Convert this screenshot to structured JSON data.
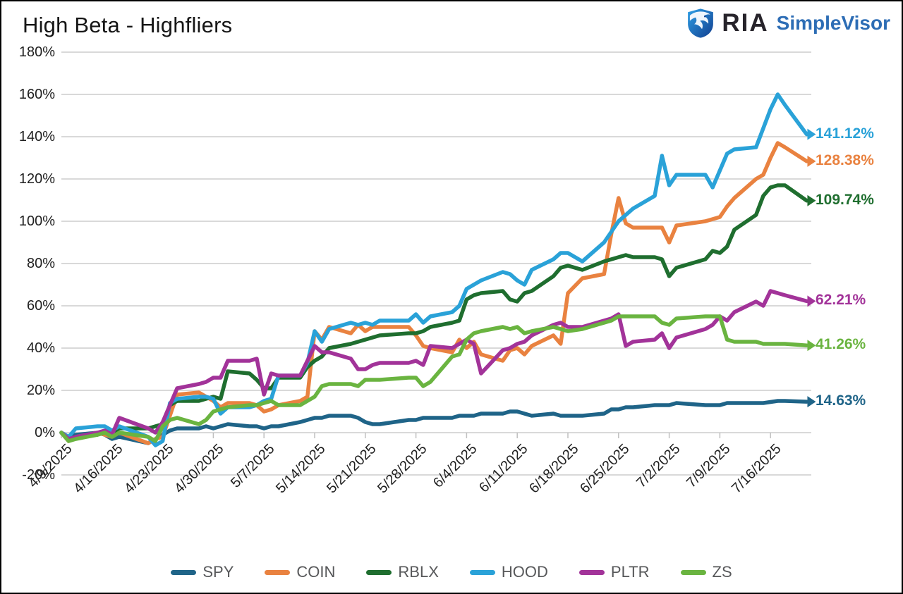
{
  "title": "High Beta - Highfliers",
  "logo": {
    "brand": "RIA",
    "product": "SimpleVisor",
    "brand_color": "#27242b",
    "product_color": "#2d6db5",
    "shield_dark": "#123f8f",
    "shield_light": "#2e9fe6"
  },
  "chart_data": {
    "type": "line",
    "title": "High Beta - Highfliers",
    "xlabel": "",
    "ylabel": "",
    "y_axis": {
      "min": -20,
      "max": 180,
      "step": 20,
      "suffix": "%"
    },
    "grid": true,
    "grid_color": "#d9d9d9",
    "tick_color": "#c0c0c0",
    "legend_position": "bottom",
    "x_unit": "days since 4/9/2025",
    "x_ticks": [
      {
        "label": "4/9/2025",
        "day": 0
      },
      {
        "label": "4/16/2025",
        "day": 7
      },
      {
        "label": "4/23/2025",
        "day": 14
      },
      {
        "label": "4/30/2025",
        "day": 21
      },
      {
        "label": "5/7/2025",
        "day": 28
      },
      {
        "label": "5/14/2025",
        "day": 35
      },
      {
        "label": "5/21/2025",
        "day": 42
      },
      {
        "label": "5/28/2025",
        "day": 49
      },
      {
        "label": "6/4/2025",
        "day": 56
      },
      {
        "label": "6/11/2025",
        "day": 63
      },
      {
        "label": "6/18/2025",
        "day": 70
      },
      {
        "label": "6/25/2025",
        "day": 77
      },
      {
        "label": "7/2/2025",
        "day": 84
      },
      {
        "label": "7/9/2025",
        "day": 91
      },
      {
        "label": "7/16/2025",
        "day": 98
      }
    ],
    "days": [
      0,
      1,
      2,
      5,
      6,
      7,
      8,
      12,
      13,
      14,
      15,
      16,
      19,
      20,
      21,
      22,
      23,
      26,
      27,
      28,
      29,
      30,
      33,
      34,
      35,
      36,
      37,
      40,
      41,
      42,
      43,
      44,
      48,
      49,
      50,
      51,
      54,
      55,
      56,
      57,
      58,
      61,
      62,
      63,
      64,
      65,
      68,
      69,
      70,
      72,
      75,
      76,
      77,
      78,
      79,
      82,
      83,
      84,
      85,
      89,
      90,
      91,
      92,
      93,
      96,
      97,
      98,
      99,
      100,
      103
    ],
    "series": [
      {
        "name": "SPY",
        "color": "#1f6488",
        "end_label": "14.63%",
        "values": [
          0,
          -2,
          -1,
          0,
          -1,
          -3,
          -2,
          -5,
          -3,
          -1,
          1,
          2,
          2,
          3,
          2,
          3,
          4,
          3,
          3,
          2,
          3,
          3,
          5,
          6,
          7,
          7,
          8,
          8,
          7,
          5,
          4,
          4,
          6,
          6,
          7,
          7,
          7,
          8,
          8,
          8,
          9,
          9,
          10,
          10,
          9,
          8,
          9,
          8,
          8,
          8,
          9,
          11,
          11,
          12,
          12,
          13,
          13,
          13,
          14,
          13,
          13,
          13,
          14,
          14,
          14,
          14,
          14.5,
          15,
          15,
          14.63
        ]
      },
      {
        "name": "COIN",
        "color": "#e98240",
        "end_label": "128.38%",
        "values": [
          0,
          -4,
          -2,
          0,
          -1,
          -2,
          0,
          -5,
          -3,
          -2,
          8,
          18,
          19,
          17,
          15,
          12,
          14,
          14,
          13,
          10,
          11,
          13,
          15,
          17,
          48,
          44,
          50,
          47,
          51,
          48,
          50,
          50,
          50,
          46,
          41,
          40,
          38,
          44,
          40,
          43,
          37,
          34,
          39,
          40,
          37,
          41,
          46,
          42,
          66,
          73,
          75,
          94,
          111,
          99,
          97,
          97,
          97,
          90,
          98,
          100,
          101,
          102,
          107,
          111,
          120,
          122,
          130,
          137,
          135,
          128.38
        ]
      },
      {
        "name": "RBLX",
        "color": "#1f6e2f",
        "end_label": "109.74%",
        "values": [
          0,
          -3,
          -2,
          -1,
          0,
          0,
          2,
          2,
          3,
          4,
          13,
          15,
          15,
          16,
          17,
          16,
          29,
          28,
          25,
          21,
          21,
          26,
          26,
          31,
          34,
          36,
          40,
          42,
          43,
          44,
          45,
          46,
          47,
          47,
          48,
          50,
          52,
          53,
          63,
          65,
          66,
          67,
          63,
          62,
          66,
          67,
          74,
          78,
          79,
          77,
          81,
          82,
          83,
          84,
          83,
          83,
          82,
          74,
          78,
          82,
          86,
          85,
          88,
          96,
          103,
          112,
          116,
          117,
          117,
          109.74
        ]
      },
      {
        "name": "HOOD",
        "color": "#2aa2d8",
        "end_label": "141.12%",
        "values": [
          0,
          -2,
          2,
          3,
          3,
          1,
          3,
          -2,
          -6,
          -4,
          14,
          16,
          17,
          17,
          16,
          9,
          12,
          12,
          13,
          15,
          16,
          27,
          27,
          33,
          48,
          43,
          49,
          52,
          51,
          52,
          51,
          53,
          53,
          56,
          52,
          55,
          57,
          60,
          68,
          70,
          72,
          76,
          75,
          72,
          70,
          77,
          82,
          85,
          85,
          81,
          90,
          95,
          100,
          103,
          106,
          112,
          131,
          117,
          122,
          122,
          116,
          124,
          132,
          134,
          135,
          144,
          153,
          160,
          155,
          141.12
        ]
      },
      {
        "name": "PLTR",
        "color": "#a23399",
        "end_label": "62.21%",
        "values": [
          0,
          -3,
          -2,
          0,
          1,
          -1,
          7,
          2,
          0,
          5,
          13,
          21,
          23,
          24,
          26,
          26,
          34,
          34,
          35,
          18,
          28,
          27,
          27,
          34,
          41,
          38,
          38,
          35,
          30,
          30,
          32,
          33,
          33,
          34,
          32,
          41,
          40,
          42,
          44,
          42,
          28,
          39,
          40,
          42,
          43,
          46,
          51,
          52,
          50,
          50,
          53,
          54,
          56,
          41,
          43,
          44,
          47,
          40,
          45,
          49,
          51,
          55,
          53,
          57,
          62,
          60,
          67,
          66,
          65,
          62.21
        ]
      },
      {
        "name": "ZS",
        "color": "#6ab440",
        "end_label": "41.26%",
        "values": [
          0,
          -4,
          -3,
          -1,
          0,
          -2,
          0,
          -2,
          -4,
          3,
          6,
          7,
          4,
          6,
          10,
          11,
          12,
          13,
          13,
          14,
          15,
          13,
          13,
          15,
          17,
          22,
          23,
          23,
          22,
          25,
          25,
          25,
          26,
          26,
          22,
          24,
          36,
          37,
          44,
          47,
          48,
          50,
          49,
          50,
          47,
          48,
          50,
          49,
          48,
          49,
          52,
          53,
          55,
          55,
          55,
          55,
          52,
          51,
          54,
          55,
          55,
          55,
          44,
          43,
          43,
          42,
          42,
          42,
          42,
          41.26
        ]
      }
    ]
  }
}
